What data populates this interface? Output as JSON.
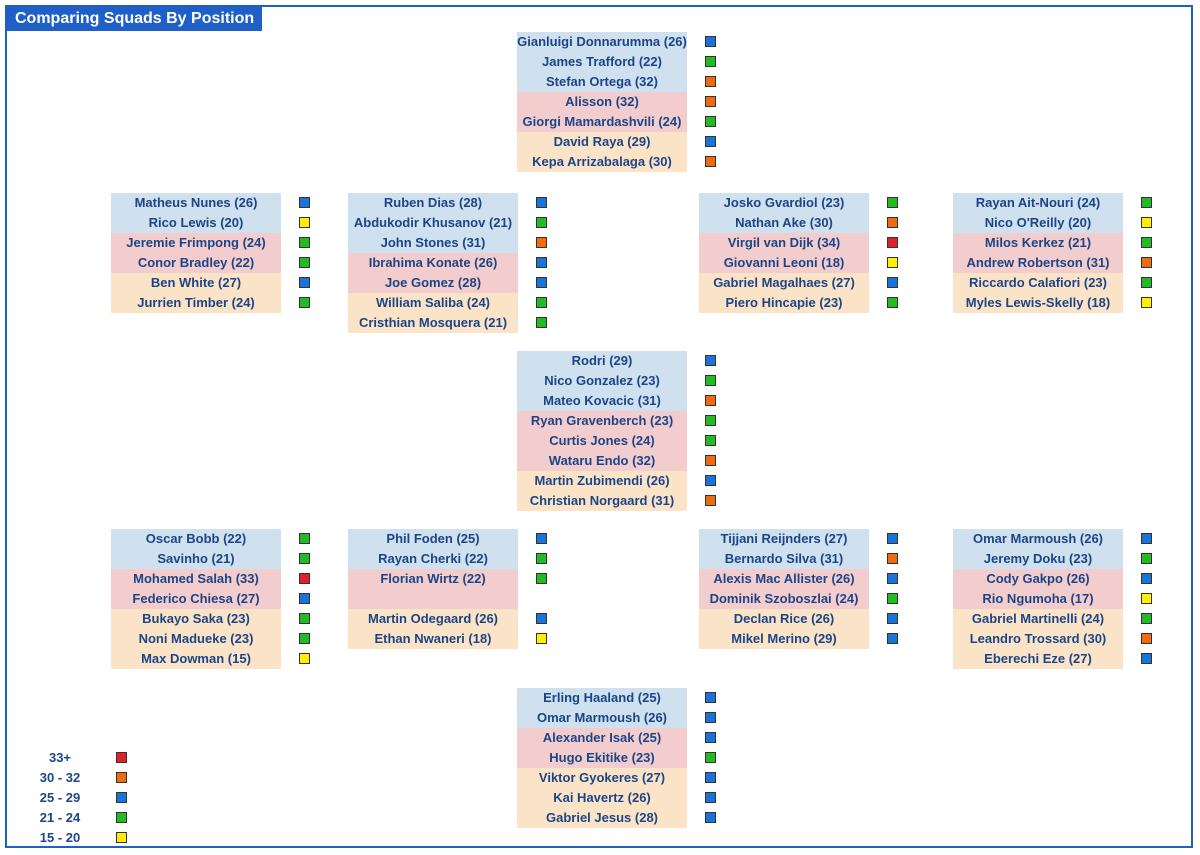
{
  "title": "Comparing Squads By Position",
  "colors": {
    "33+": "#e0202a",
    "30 - 32": "#f06a10",
    "25 - 29": "#1a73d9",
    "21 - 24": "#22bb22",
    "15 - 20": "#ffee00"
  },
  "legend": [
    {
      "label": "33+",
      "band": "33+"
    },
    {
      "label": "30 - 32",
      "band": "30 - 32"
    },
    {
      "label": "25 - 29",
      "band": "25 - 29"
    },
    {
      "label": "21 - 24",
      "band": "21 - 24"
    },
    {
      "label": "15 - 20",
      "band": "15 - 20"
    }
  ],
  "groups": [
    {
      "id": "gk",
      "rows": [
        {
          "name": "Gianluigi Donnarumma (26)",
          "club": 0,
          "band": "25 - 29"
        },
        {
          "name": "James Trafford (22)",
          "club": 0,
          "band": "21 - 24"
        },
        {
          "name": "Stefan Ortega (32)",
          "club": 0,
          "band": "30 - 32"
        },
        {
          "name": "Alisson (32)",
          "club": 1,
          "band": "30 - 32"
        },
        {
          "name": "Giorgi Mamardashvili (24)",
          "club": 1,
          "band": "21 - 24"
        },
        {
          "name": "David Raya (29)",
          "club": 2,
          "band": "25 - 29"
        },
        {
          "name": "Kepa Arrizabalaga (30)",
          "club": 2,
          "band": "30 - 32"
        }
      ]
    },
    {
      "id": "rb",
      "rows": [
        {
          "name": "Matheus Nunes (26)",
          "club": 0,
          "band": "25 - 29"
        },
        {
          "name": "Rico Lewis (20)",
          "club": 0,
          "band": "15 - 20"
        },
        {
          "name": "Jeremie Frimpong (24)",
          "club": 1,
          "band": "21 - 24"
        },
        {
          "name": "Conor Bradley (22)",
          "club": 1,
          "band": "21 - 24"
        },
        {
          "name": "Ben White (27)",
          "club": 2,
          "band": "25 - 29"
        },
        {
          "name": "Jurrien Timber (24)",
          "club": 2,
          "band": "21 - 24"
        }
      ]
    },
    {
      "id": "rcb",
      "rows": [
        {
          "name": "Ruben Dias (28)",
          "club": 0,
          "band": "25 - 29"
        },
        {
          "name": "Abdukodir Khusanov (21)",
          "club": 0,
          "band": "21 - 24"
        },
        {
          "name": "John Stones (31)",
          "club": 0,
          "band": "30 - 32"
        },
        {
          "name": "Ibrahima Konate (26)",
          "club": 1,
          "band": "25 - 29"
        },
        {
          "name": "Joe Gomez (28)",
          "club": 1,
          "band": "25 - 29"
        },
        {
          "name": "William Saliba (24)",
          "club": 2,
          "band": "21 - 24"
        },
        {
          "name": "Cristhian Mosquera (21)",
          "club": 2,
          "band": "21 - 24"
        }
      ]
    },
    {
      "id": "lcb",
      "rows": [
        {
          "name": "Josko Gvardiol (23)",
          "club": 0,
          "band": "21 - 24"
        },
        {
          "name": "Nathan Ake (30)",
          "club": 0,
          "band": "30 - 32"
        },
        {
          "name": "Virgil van Dijk (34)",
          "club": 1,
          "band": "33+"
        },
        {
          "name": "Giovanni Leoni (18)",
          "club": 1,
          "band": "15 - 20"
        },
        {
          "name": "Gabriel Magalhaes (27)",
          "club": 2,
          "band": "25 - 29"
        },
        {
          "name": "Piero Hincapie (23)",
          "club": 2,
          "band": "21 - 24"
        }
      ]
    },
    {
      "id": "lb",
      "rows": [
        {
          "name": "Rayan Ait-Nouri (24)",
          "club": 0,
          "band": "21 - 24"
        },
        {
          "name": "Nico O'Reilly (20)",
          "club": 0,
          "band": "15 - 20"
        },
        {
          "name": "Milos Kerkez (21)",
          "club": 1,
          "band": "21 - 24"
        },
        {
          "name": "Andrew Robertson (31)",
          "club": 1,
          "band": "30 - 32"
        },
        {
          "name": "Riccardo Calafiori (23)",
          "club": 2,
          "band": "21 - 24"
        },
        {
          "name": "Myles Lewis-Skelly (18)",
          "club": 2,
          "band": "15 - 20"
        }
      ]
    },
    {
      "id": "dm",
      "rows": [
        {
          "name": "Rodri (29)",
          "club": 0,
          "band": "25 - 29"
        },
        {
          "name": "Nico Gonzalez (23)",
          "club": 0,
          "band": "21 - 24"
        },
        {
          "name": "Mateo Kovacic (31)",
          "club": 0,
          "band": "30 - 32"
        },
        {
          "name": "Ryan Gravenberch (23)",
          "club": 1,
          "band": "21 - 24"
        },
        {
          "name": "Curtis Jones (24)",
          "club": 1,
          "band": "21 - 24"
        },
        {
          "name": "Wataru Endo (32)",
          "club": 1,
          "band": "30 - 32"
        },
        {
          "name": "Martin Zubimendi (26)",
          "club": 2,
          "band": "25 - 29"
        },
        {
          "name": "Christian Norgaard (31)",
          "club": 2,
          "band": "30 - 32"
        }
      ]
    },
    {
      "id": "rw",
      "rows": [
        {
          "name": "Oscar Bobb (22)",
          "club": 0,
          "band": "21 - 24"
        },
        {
          "name": "Savinho (21)",
          "club": 0,
          "band": "21 - 24"
        },
        {
          "name": "Mohamed Salah (33)",
          "club": 1,
          "band": "33+"
        },
        {
          "name": "Federico Chiesa (27)",
          "club": 1,
          "band": "25 - 29"
        },
        {
          "name": "Bukayo Saka (23)",
          "club": 2,
          "band": "21 - 24"
        },
        {
          "name": "Noni Madueke (23)",
          "club": 2,
          "band": "21 - 24"
        },
        {
          "name": "Max Dowman (15)",
          "club": 2,
          "band": "15 - 20"
        }
      ]
    },
    {
      "id": "am",
      "rows": [
        {
          "name": "Phil Foden (25)",
          "club": 0,
          "band": "25 - 29"
        },
        {
          "name": "Rayan Cherki (22)",
          "club": 0,
          "band": "21 - 24"
        },
        {
          "name": "Florian Wirtz (22)",
          "club": 1,
          "band": "21 - 24"
        },
        {
          "name": "",
          "club": 1,
          "band": ""
        },
        {
          "name": "Martin Odegaard (26)",
          "club": 2,
          "band": "25 - 29"
        },
        {
          "name": "Ethan Nwaneri (18)",
          "club": 2,
          "band": "15 - 20"
        }
      ]
    },
    {
      "id": "cm",
      "rows": [
        {
          "name": "Tijjani Reijnders (27)",
          "club": 0,
          "band": "25 - 29"
        },
        {
          "name": "Bernardo Silva (31)",
          "club": 0,
          "band": "30 - 32"
        },
        {
          "name": "Alexis Mac Allister (26)",
          "club": 1,
          "band": "25 - 29"
        },
        {
          "name": "Dominik Szoboszlai (24)",
          "club": 1,
          "band": "21 - 24"
        },
        {
          "name": "Declan Rice (26)",
          "club": 2,
          "band": "25 - 29"
        },
        {
          "name": "Mikel Merino (29)",
          "club": 2,
          "band": "25 - 29"
        }
      ]
    },
    {
      "id": "lw",
      "rows": [
        {
          "name": "Omar Marmoush (26)",
          "club": 0,
          "band": "25 - 29"
        },
        {
          "name": "Jeremy Doku (23)",
          "club": 0,
          "band": "21 - 24"
        },
        {
          "name": "Cody Gakpo (26)",
          "club": 1,
          "band": "25 - 29"
        },
        {
          "name": "Rio Ngumoha (17)",
          "club": 1,
          "band": "15 - 20"
        },
        {
          "name": "Gabriel Martinelli (24)",
          "club": 2,
          "band": "21 - 24"
        },
        {
          "name": "Leandro Trossard (30)",
          "club": 2,
          "band": "30 - 32"
        },
        {
          "name": "Eberechi Eze (27)",
          "club": 2,
          "band": "25 - 29"
        }
      ]
    },
    {
      "id": "st",
      "rows": [
        {
          "name": "Erling Haaland (25)",
          "club": 0,
          "band": "25 - 29"
        },
        {
          "name": "Omar Marmoush (26)",
          "club": 0,
          "band": "25 - 29"
        },
        {
          "name": "Alexander Isak (25)",
          "club": 1,
          "band": "25 - 29"
        },
        {
          "name": "Hugo Ekitike (23)",
          "club": 1,
          "band": "21 - 24"
        },
        {
          "name": "Viktor Gyokeres (27)",
          "club": 2,
          "band": "25 - 29"
        },
        {
          "name": "Kai Havertz (26)",
          "club": 2,
          "band": "25 - 29"
        },
        {
          "name": "Gabriel Jesus (28)",
          "club": 2,
          "band": "25 - 29"
        }
      ]
    }
  ]
}
